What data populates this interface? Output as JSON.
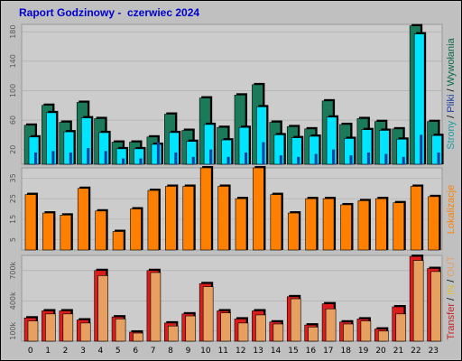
{
  "title": "Raport Godzinowy -  czerwiec 2024",
  "colors": {
    "strony": "#1a7a5a",
    "pliki": "#00e5ff",
    "wywolania": "#1040a0",
    "lokalizacje": "#ff8000",
    "transfer": "#dd1c1c",
    "in": "#e8a060",
    "out": "#f5c842",
    "background": "#c0c0c0",
    "panel": "#cccccc"
  },
  "side_labels": {
    "top": [
      {
        "text": "Strony",
        "color": "#1a9e9e"
      },
      {
        "text": " / ",
        "color": "#000000"
      },
      {
        "text": "Pliki",
        "color": "#1a3fa0"
      },
      {
        "text": " / ",
        "color": "#000000"
      },
      {
        "text": "Wywołania",
        "color": "#0a6a4a"
      }
    ],
    "middle": [
      {
        "text": "Lokalizacje",
        "color": "#ff8000"
      }
    ],
    "bottom": [
      {
        "text": "Transfer",
        "color": "#cc2020"
      },
      {
        "text": " / ",
        "color": "#000000"
      },
      {
        "text": "IN",
        "color": "#e0c030"
      },
      {
        "text": " / ",
        "color": "#000000"
      },
      {
        "text": "OUT",
        "color": "#e8a060"
      }
    ]
  },
  "chart_data": [
    {
      "type": "bar",
      "name": "Strony / Pliki / Wywołania",
      "categories": [
        "0",
        "1",
        "2",
        "3",
        "4",
        "5",
        "6",
        "7",
        "8",
        "9",
        "10",
        "11",
        "12",
        "13",
        "14",
        "15",
        "16",
        "17",
        "18",
        "19",
        "20",
        "21",
        "22",
        "23"
      ],
      "ylim": [
        0,
        190
      ],
      "ticks": [
        20,
        60,
        100,
        140,
        180
      ],
      "series": [
        {
          "name": "Wywołania",
          "values": [
            53,
            80,
            57,
            84,
            62,
            30,
            30,
            37,
            68,
            46,
            90,
            50,
            94,
            108,
            57,
            51,
            48,
            86,
            54,
            62,
            58,
            48,
            188,
            58
          ]
        },
        {
          "name": "Pliki",
          "values": [
            37,
            70,
            44,
            63,
            43,
            21,
            21,
            27,
            43,
            31,
            54,
            33,
            50,
            78,
            40,
            36,
            38,
            64,
            35,
            47,
            46,
            34,
            177,
            39
          ]
        },
        {
          "name": "Strony",
          "values": [
            16,
            18,
            16,
            22,
            18,
            8,
            8,
            30,
            16,
            10,
            20,
            10,
            16,
            30,
            12,
            10,
            14,
            20,
            12,
            16,
            14,
            10,
            40,
            16
          ]
        }
      ]
    },
    {
      "type": "bar",
      "name": "Lokalizacje",
      "categories": [
        "0",
        "1",
        "2",
        "3",
        "4",
        "5",
        "6",
        "7",
        "8",
        "9",
        "10",
        "11",
        "12",
        "13",
        "14",
        "15",
        "16",
        "17",
        "18",
        "19",
        "20",
        "21",
        "22",
        "23"
      ],
      "ylim": [
        0,
        40
      ],
      "ticks": [
        5,
        15,
        25,
        35
      ],
      "series": [
        {
          "name": "Lokalizacje",
          "values": [
            27,
            18,
            17,
            30,
            19,
            9,
            20,
            29,
            31,
            31,
            40,
            31,
            25,
            40,
            27,
            18,
            25,
            25,
            22,
            24,
            25,
            23,
            31,
            26
          ]
        }
      ]
    },
    {
      "type": "bar",
      "name": "Transfer",
      "categories": [
        "0",
        "1",
        "2",
        "3",
        "4",
        "5",
        "6",
        "7",
        "8",
        "9",
        "10",
        "11",
        "12",
        "13",
        "14",
        "15",
        "16",
        "17",
        "18",
        "19",
        "20",
        "21",
        "22",
        "23"
      ],
      "ylim": [
        0,
        850
      ],
      "ticks": [
        100,
        400,
        700
      ],
      "tick_labels": [
        "100k",
        "400k",
        "700k"
      ],
      "series": [
        {
          "name": "Transfer",
          "values": [
            230,
            300,
            300,
            210,
            700,
            240,
            90,
            700,
            180,
            270,
            570,
            300,
            220,
            300,
            190,
            440,
            160,
            370,
            190,
            220,
            120,
            340,
            840,
            720
          ]
        },
        {
          "name": "OUT",
          "values": [
            200,
            270,
            270,
            180,
            650,
            220,
            80,
            680,
            150,
            250,
            540,
            280,
            180,
            260,
            170,
            420,
            140,
            320,
            170,
            200,
            100,
            270,
            800,
            690
          ]
        }
      ]
    }
  ],
  "x_labels": [
    "0",
    "1",
    "2",
    "3",
    "4",
    "5",
    "6",
    "7",
    "8",
    "9",
    "10",
    "11",
    "12",
    "13",
    "14",
    "15",
    "16",
    "17",
    "18",
    "19",
    "20",
    "21",
    "22",
    "23"
  ]
}
